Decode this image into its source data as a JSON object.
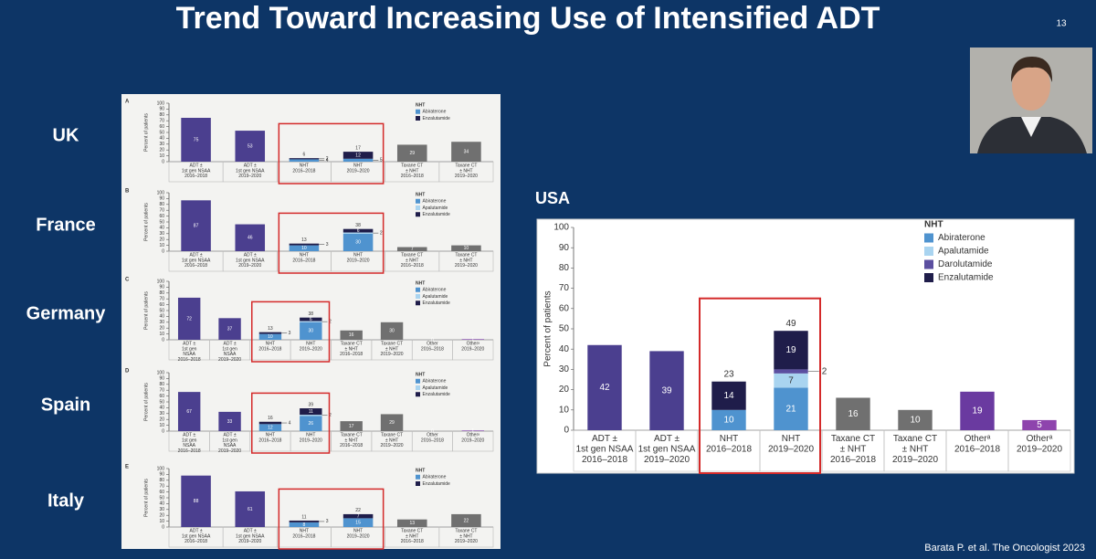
{
  "slide": {
    "title": "Trend Toward Increasing Use of Intensified ADT",
    "page_number": "13",
    "citation": "Barata P. et al.  The Oncologist 2023"
  },
  "chart_data": [
    {
      "type": "bar",
      "title": "UK",
      "panel": "A",
      "y_label": "Percent of patients",
      "legend_title": "NHT",
      "ylim": [
        0,
        100
      ],
      "yticks": [
        0,
        10,
        20,
        30,
        40,
        50,
        60,
        70,
        80,
        90,
        100
      ],
      "categories": [
        "ADT ±\n1st gen NSAA\n2016–2018",
        "ADT ±\n1st gen NSAA\n2019–2020",
        "NHT\n2016–2018",
        "NHT\n2019–2020",
        "Taxane CT\n± NHT\n2016–2018",
        "Taxane CT\n± NHT\n2019–2020"
      ],
      "values": [
        75,
        53,
        null,
        null,
        29,
        34
      ],
      "colors": [
        "#4b3f8f",
        "#4b3f8f",
        null,
        null,
        "#707070",
        "#707070"
      ],
      "series": [
        {
          "name": "Abiraterone",
          "color": "#4f93cf",
          "values": [
            null,
            null,
            4,
            5,
            null,
            null
          ]
        },
        {
          "name": "Enzalutamide",
          "color": "#1f1d4a",
          "values": [
            null,
            null,
            2,
            12,
            null,
            null
          ]
        }
      ],
      "stack_labels": [
        null,
        null,
        6,
        17,
        null,
        null
      ],
      "highlight": [
        2,
        3
      ]
    },
    {
      "type": "bar",
      "title": "France",
      "panel": "B",
      "y_label": "Percent of patients",
      "legend_title": "NHT",
      "ylim": [
        0,
        100
      ],
      "yticks": [
        0,
        10,
        20,
        30,
        40,
        50,
        60,
        70,
        80,
        90,
        100
      ],
      "categories": [
        "ADT ±\n1st gen NSAA\n2016–2018",
        "ADT ±\n1st gen NSAA\n2019–2020",
        "NHT\n2016–2018",
        "NHT\n2019–2020",
        "Taxane CT\n± NHT\n2016–2018",
        "Taxane CT\n± NHT\n2019–2020"
      ],
      "values": [
        87,
        46,
        null,
        null,
        7,
        10
      ],
      "colors": [
        "#4b3f8f",
        "#4b3f8f",
        null,
        null,
        "#707070",
        "#707070"
      ],
      "series": [
        {
          "name": "Abiraterone",
          "color": "#4f93cf",
          "values": [
            null,
            null,
            10,
            30,
            null,
            null
          ]
        },
        {
          "name": "Apalutamide",
          "color": "#a9d4f0",
          "values": [
            null,
            null,
            null,
            2,
            null,
            null
          ]
        },
        {
          "name": "Enzalutamide",
          "color": "#1f1d4a",
          "values": [
            null,
            null,
            3,
            6,
            null,
            null
          ]
        }
      ],
      "stack_labels": [
        null,
        null,
        13,
        38,
        null,
        null
      ],
      "highlight": [
        2,
        3
      ]
    },
    {
      "type": "bar",
      "title": "Germany",
      "panel": "C",
      "y_label": "Percent of patients",
      "legend_title": "NHT",
      "ylim": [
        0,
        100
      ],
      "yticks": [
        0,
        10,
        20,
        30,
        40,
        50,
        60,
        70,
        80,
        90,
        100
      ],
      "categories": [
        "ADT ±\n1st gen\nNSAA\n2016–2018",
        "ADT ±\n1st gen\nNSAA\n2019–2020",
        "NHT\n2016–2018",
        "NHT\n2019–2020",
        "Taxane CT\n± NHT\n2016–2018",
        "Taxane CT\n± NHT\n2019–2020",
        "Other\n2016–2018",
        "Otherᵃ\n2019–2020"
      ],
      "values": [
        72,
        37,
        null,
        null,
        16,
        30,
        0,
        1
      ],
      "colors": [
        "#4b3f8f",
        "#4b3f8f",
        null,
        null,
        "#707070",
        "#707070",
        "#7d3ca8",
        "#7d3ca8"
      ],
      "series": [
        {
          "name": "Abiraterone",
          "color": "#4f93cf",
          "values": [
            null,
            null,
            10,
            30,
            null,
            null,
            null,
            null
          ]
        },
        {
          "name": "Apalutamide",
          "color": "#a9d4f0",
          "values": [
            null,
            null,
            null,
            2,
            null,
            null,
            null,
            null
          ]
        },
        {
          "name": "Enzalutamide",
          "color": "#1f1d4a",
          "values": [
            null,
            null,
            3,
            6,
            null,
            null,
            null,
            null
          ]
        }
      ],
      "stack_labels": [
        null,
        null,
        13,
        38,
        null,
        null,
        null,
        null
      ],
      "highlight": [
        2,
        3
      ]
    },
    {
      "type": "bar",
      "title": "Spain",
      "panel": "D",
      "y_label": "Percent of patients",
      "legend_title": "NHT",
      "ylim": [
        0,
        100
      ],
      "yticks": [
        0,
        10,
        20,
        30,
        40,
        50,
        60,
        70,
        80,
        90,
        100
      ],
      "categories": [
        "ADT ±\n1st gen\nNSAA\n2016–2018",
        "ADT ±\n1st gen\nNSAA\n2019–2020",
        "NHT\n2016–2018",
        "NHT\n2019–2020",
        "Taxane CT\n± NHT\n2016–2018",
        "Taxane CT\n± NHT\n2019–2020",
        "Other\n2016–2018",
        "Otherᵃ\n2019–2020"
      ],
      "values": [
        67,
        33,
        null,
        null,
        17,
        29,
        0,
        1
      ],
      "colors": [
        "#4b3f8f",
        "#4b3f8f",
        null,
        null,
        "#707070",
        "#707070",
        "#7d3ca8",
        "#7d3ca8"
      ],
      "series": [
        {
          "name": "Abiraterone",
          "color": "#4f93cf",
          "values": [
            null,
            null,
            12,
            26,
            null,
            null,
            null,
            null
          ]
        },
        {
          "name": "Apalutamide",
          "color": "#a9d4f0",
          "values": [
            null,
            null,
            null,
            2,
            null,
            null,
            null,
            null
          ]
        },
        {
          "name": "Enzalutamide",
          "color": "#1f1d4a",
          "values": [
            null,
            null,
            4,
            11,
            null,
            null,
            null,
            null
          ]
        }
      ],
      "stack_labels": [
        null,
        null,
        16,
        39,
        null,
        null,
        null,
        null
      ],
      "highlight": [
        2,
        3
      ]
    },
    {
      "type": "bar",
      "title": "Italy",
      "panel": "E",
      "y_label": "Percent of patients",
      "legend_title": "NHT",
      "ylim": [
        0,
        100
      ],
      "yticks": [
        0,
        10,
        20,
        30,
        40,
        50,
        60,
        70,
        80,
        90,
        100
      ],
      "categories": [
        "ADT ±\n1st gen NSAA\n2016–2018",
        "ADT ±\n1st gen NSAA\n2019–2020",
        "NHT\n2016–2018",
        "NHT\n2019–2020",
        "Taxane CT\n± NHT\n2016–2018",
        "Taxane CT\n± NHT\n2019–2020"
      ],
      "values": [
        88,
        61,
        null,
        null,
        13,
        22
      ],
      "colors": [
        "#4b3f8f",
        "#4b3f8f",
        null,
        null,
        "#707070",
        "#707070"
      ],
      "series": [
        {
          "name": "Abiraterone",
          "color": "#4f93cf",
          "values": [
            null,
            null,
            8,
            15,
            null,
            null
          ]
        },
        {
          "name": "Enzalutamide",
          "color": "#1f1d4a",
          "values": [
            null,
            null,
            3,
            7,
            null,
            null
          ]
        }
      ],
      "stack_labels": [
        null,
        null,
        11,
        22,
        null,
        null
      ],
      "highlight": [
        2,
        3
      ]
    },
    {
      "type": "bar",
      "title": "USA",
      "y_label": "Percent of patients",
      "legend_title": "NHT",
      "ylim": [
        0,
        100
      ],
      "yticks": [
        0,
        10,
        20,
        30,
        40,
        50,
        60,
        70,
        80,
        90,
        100
      ],
      "categories": [
        "ADT ±\n1st gen NSAA\n2016–2018",
        "ADT ±\n1st gen NSAA\n2019–2020",
        "NHT\n2016–2018",
        "NHT\n2019–2020",
        "Taxane CT\n± NHT\n2016–2018",
        "Taxane CT\n± NHT\n2019–2020",
        "Otherᵃ\n2016–2018",
        "Otherᵃ\n2019–2020"
      ],
      "values": [
        42,
        39,
        null,
        null,
        16,
        10,
        19,
        5
      ],
      "colors": [
        "#4b3f8f",
        "#4b3f8f",
        null,
        null,
        "#707070",
        "#707070",
        "#6a3aa0",
        "#8e44ad"
      ],
      "series": [
        {
          "name": "Abiraterone",
          "color": "#4f93cf",
          "values": [
            null,
            null,
            10,
            21,
            null,
            null,
            null,
            null
          ]
        },
        {
          "name": "Apalutamide",
          "color": "#a9d4f0",
          "values": [
            null,
            null,
            null,
            7,
            null,
            null,
            null,
            null
          ]
        },
        {
          "name": "Darolutamide",
          "color": "#5b4fa0",
          "values": [
            null,
            null,
            null,
            2,
            null,
            null,
            null,
            null
          ]
        },
        {
          "name": "Enzalutamide",
          "color": "#1f1d4a",
          "values": [
            null,
            null,
            14,
            19,
            null,
            null,
            null,
            null
          ]
        }
      ],
      "stack_labels": [
        null,
        null,
        23,
        49,
        null,
        null,
        null,
        null
      ],
      "highlight": [
        2,
        3
      ]
    }
  ]
}
